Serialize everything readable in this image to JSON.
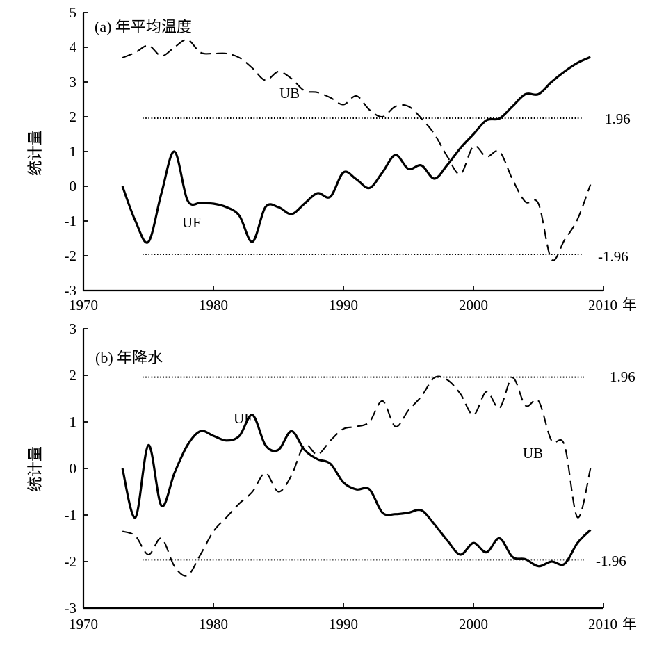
{
  "chart_data": [
    {
      "type": "line",
      "title": "(a) 年平均温度",
      "ylabel": "统计量",
      "xlabel": "",
      "x_unit_label": "年",
      "xlim": [
        1970,
        2010
      ],
      "ylim": [
        -3,
        5
      ],
      "xticks": [
        1970,
        1980,
        1990,
        2000,
        2010
      ],
      "yticks": [
        -3,
        -2,
        -1,
        0,
        1,
        2,
        3,
        4,
        5
      ],
      "grid": false,
      "reference_lines": [
        {
          "y": 1.96,
          "label": "1.96",
          "style": "dotted"
        },
        {
          "y": -1.96,
          "label": "-1.96",
          "style": "dotted"
        }
      ],
      "series": [
        {
          "name": "UF",
          "style": "solid",
          "x": [
            1973,
            1974,
            1975,
            1976,
            1977,
            1978,
            1979,
            1980,
            1981,
            1982,
            1983,
            1984,
            1985,
            1986,
            1987,
            1988,
            1989,
            1990,
            1991,
            1992,
            1993,
            1994,
            1995,
            1996,
            1997,
            1998,
            1999,
            2000,
            2001,
            2002,
            2003,
            2004,
            2005,
            2006,
            2007,
            2008,
            2009
          ],
          "values": [
            0.0,
            -1.0,
            -1.6,
            -0.2,
            1.0,
            -0.4,
            -0.48,
            -0.5,
            -0.6,
            -0.85,
            -1.6,
            -0.6,
            -0.6,
            -0.8,
            -0.5,
            -0.2,
            -0.3,
            0.4,
            0.2,
            -0.05,
            0.4,
            0.9,
            0.5,
            0.6,
            0.22,
            0.62,
            1.1,
            1.5,
            1.9,
            1.95,
            2.3,
            2.65,
            2.65,
            3.0,
            3.3,
            3.55,
            3.72
          ]
        },
        {
          "name": "UB",
          "style": "dashed",
          "x": [
            1973,
            1974,
            1975,
            1976,
            1977,
            1978,
            1979,
            1980,
            1981,
            1982,
            1983,
            1984,
            1985,
            1986,
            1987,
            1988,
            1989,
            1990,
            1991,
            1992,
            1993,
            1994,
            1995,
            1996,
            1997,
            1998,
            1999,
            2000,
            2001,
            2002,
            2003,
            2004,
            2005,
            2006,
            2007,
            2008,
            2009
          ],
          "values": [
            3.7,
            3.85,
            4.05,
            3.75,
            4.0,
            4.22,
            3.85,
            3.82,
            3.82,
            3.7,
            3.4,
            3.05,
            3.3,
            3.1,
            2.75,
            2.7,
            2.55,
            2.35,
            2.6,
            2.2,
            2.0,
            2.3,
            2.3,
            1.95,
            1.5,
            0.85,
            0.35,
            1.15,
            0.85,
            1.0,
            0.2,
            -0.45,
            -0.5,
            -2.1,
            -1.55,
            -0.95,
            0.05
          ]
        }
      ],
      "annotations": [
        "UB",
        "UF"
      ]
    },
    {
      "type": "line",
      "title": "(b) 年降水",
      "ylabel": "统计量",
      "xlabel": "",
      "x_unit_label": "年",
      "xlim": [
        1970,
        2010
      ],
      "ylim": [
        -3,
        3
      ],
      "xticks": [
        1970,
        1980,
        1990,
        2000,
        2010
      ],
      "yticks": [
        -3,
        -2,
        -1,
        0,
        1,
        2,
        3
      ],
      "grid": false,
      "reference_lines": [
        {
          "y": 1.96,
          "label": "1.96",
          "style": "dotted"
        },
        {
          "y": -1.96,
          "label": "-1.96",
          "style": "dotted"
        }
      ],
      "series": [
        {
          "name": "UF",
          "style": "solid",
          "x": [
            1973,
            1974,
            1975,
            1976,
            1977,
            1978,
            1979,
            1980,
            1981,
            1982,
            1983,
            1984,
            1985,
            1986,
            1987,
            1988,
            1989,
            1990,
            1991,
            1992,
            1993,
            1994,
            1995,
            1996,
            1997,
            1998,
            1999,
            2000,
            2001,
            2002,
            2003,
            2004,
            2005,
            2006,
            2007,
            2008,
            2009
          ],
          "values": [
            0.0,
            -1.05,
            0.5,
            -0.8,
            -0.1,
            0.5,
            0.8,
            0.7,
            0.6,
            0.7,
            1.15,
            0.5,
            0.4,
            0.8,
            0.4,
            0.2,
            0.1,
            -0.3,
            -0.45,
            -0.45,
            -0.95,
            -0.98,
            -0.95,
            -0.9,
            -1.2,
            -1.55,
            -1.85,
            -1.6,
            -1.8,
            -1.5,
            -1.9,
            -1.95,
            -2.1,
            -2.0,
            -2.05,
            -1.6,
            -1.32
          ]
        },
        {
          "name": "UB",
          "style": "dashed",
          "x": [
            1973,
            1974,
            1975,
            1976,
            1977,
            1978,
            1979,
            1980,
            1981,
            1982,
            1983,
            1984,
            1985,
            1986,
            1987,
            1988,
            1989,
            1990,
            1991,
            1992,
            1993,
            1994,
            1995,
            1996,
            1997,
            1998,
            1999,
            2000,
            2001,
            2002,
            2003,
            2004,
            2005,
            2006,
            2007,
            2008,
            2009
          ],
          "values": [
            -1.35,
            -1.45,
            -1.85,
            -1.5,
            -2.1,
            -2.3,
            -1.85,
            -1.35,
            -1.05,
            -0.75,
            -0.5,
            -0.1,
            -0.5,
            -0.15,
            0.5,
            0.3,
            0.6,
            0.85,
            0.9,
            1.0,
            1.45,
            0.9,
            1.25,
            1.55,
            1.95,
            1.9,
            1.6,
            1.15,
            1.65,
            1.3,
            1.95,
            1.35,
            1.45,
            0.6,
            0.5,
            -1.05,
            0.0
          ]
        }
      ],
      "annotations": [
        "UF",
        "UB"
      ]
    }
  ]
}
